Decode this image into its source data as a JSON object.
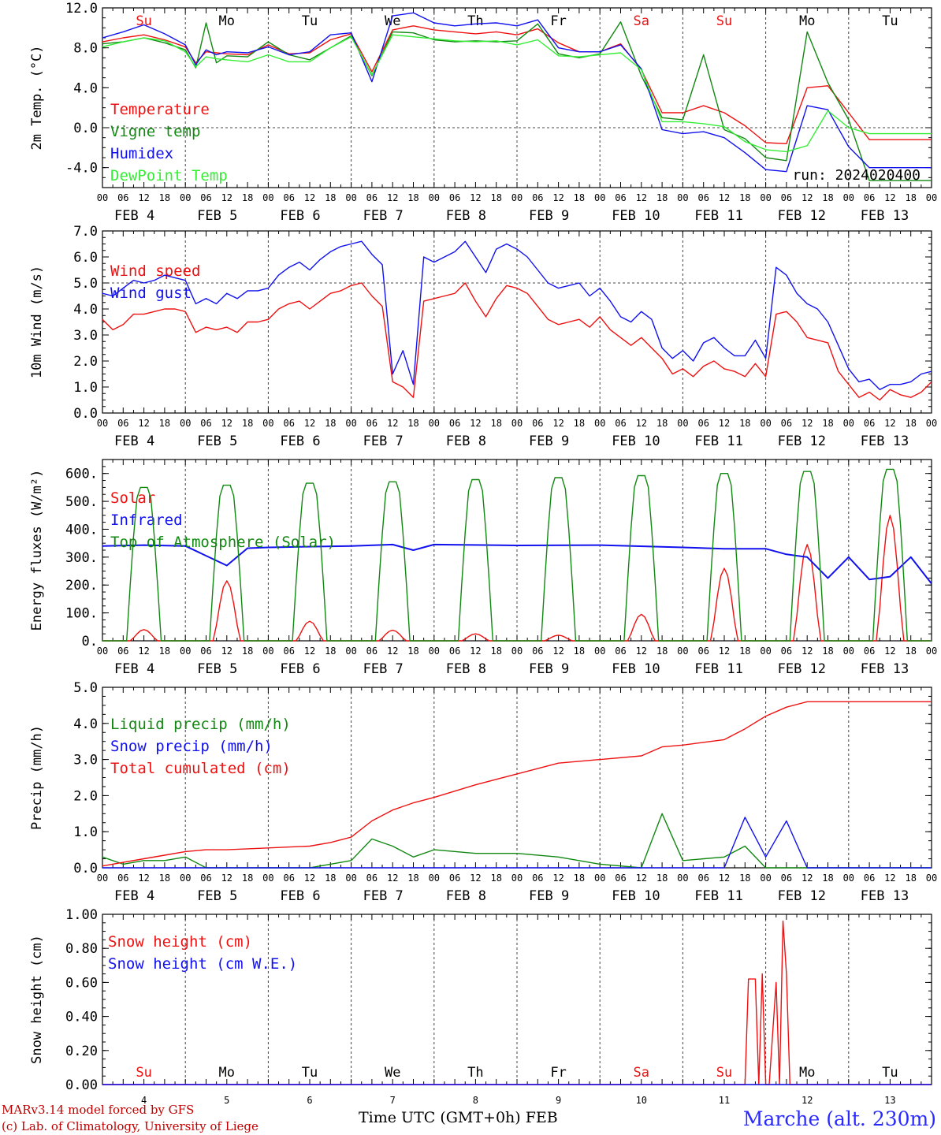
{
  "colors": {
    "red": "#ee1111",
    "green": "#118811",
    "blue": "#1111ee",
    "lightgreen": "#33ee33",
    "weekend": "#ee1111",
    "weekday": "#000000"
  },
  "day_labels": [
    "Su",
    "Mo",
    "Tu",
    "We",
    "Th",
    "Fr",
    "Sa",
    "Su",
    "Mo",
    "Tu"
  ],
  "weekend_flags": [
    true,
    false,
    false,
    false,
    false,
    false,
    true,
    true,
    false,
    false
  ],
  "date_labels": [
    "FEB  4",
    "FEB  5",
    "FEB  6",
    "FEB  7",
    "FEB  8",
    "FEB  9",
    "FEB 10",
    "FEB 11",
    "FEB 12",
    "FEB 13"
  ],
  "day_numbers": [
    "4",
    "5",
    "6",
    "7",
    "8",
    "9",
    "10",
    "11",
    "12",
    "13"
  ],
  "hour_ticks": [
    "00",
    "06",
    "12",
    "18"
  ],
  "final_hour_tick": "00",
  "footer": {
    "credit_line1": "MARv3.14 model forced by GFS",
    "credit_line2": "(c) Lab. of Climatology, University of Liege",
    "time_axis": "Time UTC (GMT+0h) FEB",
    "station": "Marche (alt. 230m)"
  },
  "chart_data": [
    {
      "type": "line",
      "ylabel": "2m Temp. (°C)",
      "ylim": [
        -6,
        12
      ],
      "yticks": [
        "12.0",
        "8.0",
        "4.0",
        "0.0",
        "-4.0"
      ],
      "ytick_values": [
        12,
        8,
        4,
        0,
        -4
      ],
      "ref_line": 0,
      "annotation": "run: 2024020400",
      "x_hours": [
        0,
        6,
        12,
        18,
        24,
        27,
        30,
        33,
        36,
        42,
        48,
        54,
        60,
        66,
        72,
        78,
        84,
        90,
        96,
        102,
        108,
        114,
        120,
        126,
        132,
        138,
        144,
        150,
        156,
        162,
        168,
        174,
        180,
        186,
        192,
        198,
        204,
        210,
        216,
        222,
        228,
        234,
        240
      ],
      "series": [
        {
          "name": "Temperature",
          "color_key": "red",
          "values": [
            8.6,
            9.0,
            9.3,
            8.8,
            8.1,
            6.5,
            7.6,
            7.5,
            7.4,
            7.3,
            8.3,
            7.4,
            7.5,
            8.8,
            9.4,
            5.6,
            9.8,
            10.2,
            9.8,
            9.6,
            9.4,
            9.6,
            9.3,
            9.9,
            8.5,
            7.6,
            7.6,
            8.4,
            5.8,
            1.5,
            1.5,
            2.2,
            1.5,
            0.2,
            -1.5,
            -1.6,
            4.0,
            4.2,
            1.5,
            -1.2,
            -1.2,
            -1.2,
            -1.2
          ]
        },
        {
          "name": "Vigne temp",
          "color_key": "green",
          "values": [
            8.4,
            8.6,
            9.0,
            8.5,
            7.8,
            6.0,
            10.5,
            6.5,
            7.2,
            7.1,
            8.6,
            7.3,
            6.8,
            8.0,
            9.2,
            5.2,
            9.6,
            9.5,
            8.8,
            8.6,
            8.7,
            8.6,
            8.7,
            10.4,
            7.4,
            7.0,
            7.4,
            10.6,
            5.2,
            1.0,
            0.8,
            7.3,
            -0.2,
            -1.1,
            -3.0,
            -3.3,
            9.6,
            4.5,
            0.8,
            -5.3,
            -5.3,
            -5.3,
            -5.3
          ]
        },
        {
          "name": "Humidex",
          "color_key": "blue",
          "values": [
            9.0,
            9.6,
            10.3,
            9.4,
            8.3,
            6.3,
            7.8,
            7.3,
            7.6,
            7.5,
            8.1,
            7.3,
            7.6,
            9.3,
            9.5,
            4.6,
            11.2,
            11.5,
            10.5,
            10.2,
            10.4,
            10.5,
            10.2,
            10.8,
            8.0,
            7.6,
            7.6,
            8.3,
            5.9,
            -0.2,
            -0.6,
            -0.4,
            -1.0,
            -2.5,
            -4.2,
            -4.4,
            2.2,
            1.8,
            -1.9,
            -4.0,
            -4.0,
            -4.0,
            -4.0
          ]
        },
        {
          "name": "DewPoint Temp",
          "color_key": "lightgreen",
          "values": [
            8.1,
            8.6,
            9.0,
            8.7,
            7.6,
            6.1,
            7.1,
            6.9,
            6.8,
            6.6,
            7.3,
            6.6,
            6.6,
            8.0,
            9.1,
            5.3,
            9.3,
            9.1,
            8.9,
            8.7,
            8.6,
            8.7,
            8.3,
            8.8,
            7.2,
            7.1,
            7.3,
            7.5,
            5.8,
            0.6,
            0.6,
            0.4,
            0.1,
            -1.4,
            -2.2,
            -2.4,
            -1.8,
            1.7,
            0.0,
            -0.6,
            -0.6,
            -0.6,
            -0.6
          ]
        }
      ]
    },
    {
      "type": "line",
      "ylabel": "10m Wind (m/s)",
      "ylim": [
        0,
        7
      ],
      "yticks": [
        "7.0",
        "6.0",
        "5.0",
        "4.0",
        "3.0",
        "2.0",
        "1.0",
        "0.0"
      ],
      "ytick_values": [
        7,
        6,
        5,
        4,
        3,
        2,
        1,
        0
      ],
      "ref_line": 5,
      "x_hours": [
        0,
        3,
        6,
        9,
        12,
        15,
        18,
        21,
        24,
        27,
        30,
        33,
        36,
        39,
        42,
        45,
        48,
        51,
        54,
        57,
        60,
        63,
        66,
        69,
        72,
        75,
        78,
        81,
        84,
        87,
        90,
        93,
        96,
        99,
        102,
        105,
        108,
        111,
        114,
        117,
        120,
        123,
        126,
        129,
        132,
        135,
        138,
        141,
        144,
        147,
        150,
        153,
        156,
        159,
        162,
        165,
        168,
        171,
        174,
        177,
        180,
        183,
        186,
        189,
        192,
        195,
        198,
        201,
        204,
        207,
        210,
        213,
        216,
        219,
        222,
        225,
        228,
        231,
        234,
        237,
        240
      ],
      "series": [
        {
          "name": "Wind speed",
          "color_key": "red",
          "values": [
            3.6,
            3.2,
            3.4,
            3.8,
            3.8,
            3.9,
            4.0,
            4.0,
            3.9,
            3.1,
            3.3,
            3.2,
            3.3,
            3.1,
            3.5,
            3.5,
            3.6,
            4.0,
            4.2,
            4.3,
            4.0,
            4.3,
            4.6,
            4.7,
            4.9,
            5.0,
            4.5,
            4.1,
            1.2,
            1.0,
            0.6,
            4.3,
            4.4,
            4.5,
            4.6,
            5.0,
            4.3,
            3.7,
            4.4,
            4.9,
            4.8,
            4.6,
            4.1,
            3.6,
            3.4,
            3.5,
            3.6,
            3.3,
            3.7,
            3.2,
            2.9,
            2.6,
            2.9,
            2.5,
            2.1,
            1.5,
            1.7,
            1.4,
            1.8,
            2.0,
            1.7,
            1.6,
            1.4,
            1.9,
            1.4,
            3.8,
            3.9,
            3.5,
            2.9,
            2.8,
            2.7,
            1.6,
            1.1,
            0.6,
            0.8,
            0.5,
            0.9,
            0.7,
            0.6,
            0.8,
            1.2
          ]
        },
        {
          "name": "Wind gust",
          "color_key": "blue",
          "values": [
            4.6,
            4.5,
            4.8,
            5.1,
            5.0,
            5.1,
            5.3,
            5.2,
            5.1,
            4.2,
            4.4,
            4.2,
            4.6,
            4.4,
            4.7,
            4.7,
            4.8,
            5.3,
            5.6,
            5.8,
            5.5,
            5.9,
            6.2,
            6.4,
            6.5,
            6.6,
            6.1,
            5.7,
            1.5,
            2.4,
            1.1,
            6.0,
            5.8,
            6.0,
            6.2,
            6.6,
            6.0,
            5.4,
            6.3,
            6.5,
            6.3,
            6.0,
            5.5,
            5.0,
            4.8,
            4.9,
            5.0,
            4.5,
            4.8,
            4.3,
            3.7,
            3.5,
            3.9,
            3.6,
            2.5,
            2.1,
            2.4,
            2.0,
            2.7,
            2.9,
            2.5,
            2.2,
            2.2,
            2.8,
            2.1,
            5.6,
            5.3,
            4.6,
            4.2,
            4.0,
            3.5,
            2.6,
            1.7,
            1.2,
            1.3,
            0.9,
            1.1,
            1.1,
            1.2,
            1.5,
            1.6
          ]
        }
      ]
    },
    {
      "type": "line",
      "ylabel": "Energy fluxes (W/m²)",
      "ylim": [
        0,
        650
      ],
      "yticks": [
        "600.",
        "500.",
        "400.",
        "300.",
        "200.",
        "100.",
        "0."
      ],
      "ytick_values": [
        600,
        500,
        400,
        300,
        200,
        100,
        0
      ],
      "series": [
        {
          "name": "Solar",
          "color_key": "red",
          "daily_peaks_w_m2": [
            40,
            215,
            70,
            38,
            25,
            20,
            95,
            260,
            345,
            450
          ],
          "peak_shape": "diurnal-bell"
        },
        {
          "name": "Infrared",
          "color_key": "blue",
          "x_hours": [
            0,
            12,
            24,
            30,
            36,
            42,
            48,
            72,
            84,
            90,
            96,
            120,
            144,
            168,
            180,
            192,
            198,
            204,
            210,
            216,
            222,
            228,
            234,
            240
          ],
          "values": [
            340,
            343,
            340,
            305,
            270,
            332,
            335,
            340,
            345,
            325,
            345,
            342,
            343,
            335,
            330,
            330,
            310,
            300,
            225,
            300,
            220,
            230,
            300,
            205
          ]
        },
        {
          "name": "Top of Atmosphere (Solar)",
          "color_key": "green",
          "daily_peaks_w_m2": [
            550,
            558,
            565,
            570,
            578,
            585,
            592,
            600,
            607,
            615
          ],
          "peak_shape": "diurnal-trapezoid"
        }
      ]
    },
    {
      "type": "line",
      "ylabel": "Precip (mm/h)",
      "ylim": [
        0,
        5
      ],
      "yticks": [
        "5.0",
        "4.0",
        "3.0",
        "2.0",
        "1.0",
        "0.0"
      ],
      "ytick_values": [
        5,
        4,
        3,
        2,
        1,
        0
      ],
      "x_hours": [
        0,
        6,
        12,
        18,
        24,
        30,
        36,
        48,
        60,
        66,
        72,
        78,
        84,
        90,
        96,
        108,
        120,
        132,
        144,
        156,
        162,
        168,
        180,
        186,
        192,
        198,
        204,
        210,
        216,
        240
      ],
      "series": [
        {
          "name": "Liquid precip (mm/h)",
          "color_key": "green",
          "values": [
            0.3,
            0.1,
            0.2,
            0.2,
            0.3,
            0.0,
            0.0,
            0.0,
            0.0,
            0.1,
            0.2,
            0.8,
            0.6,
            0.3,
            0.5,
            0.4,
            0.4,
            0.3,
            0.1,
            0.0,
            1.5,
            0.2,
            0.3,
            0.6,
            0.0,
            0.0,
            0.0,
            0.0,
            0.0,
            0.0
          ]
        },
        {
          "name": "Snow precip (mm/h)",
          "color_key": "blue",
          "values": [
            0.0,
            0.0,
            0.0,
            0.0,
            0.0,
            0.0,
            0.0,
            0.0,
            0.0,
            0.0,
            0.0,
            0.0,
            0.0,
            0.0,
            0.0,
            0.0,
            0.0,
            0.0,
            0.0,
            0.0,
            0.0,
            0.0,
            0.0,
            1.4,
            0.3,
            1.3,
            0.0,
            0.0,
            0.0,
            0.0
          ]
        },
        {
          "name": "Total cumulated (cm)",
          "color_key": "red",
          "values": [
            0.05,
            0.15,
            0.25,
            0.35,
            0.45,
            0.5,
            0.5,
            0.55,
            0.6,
            0.7,
            0.85,
            1.3,
            1.6,
            1.8,
            1.95,
            2.3,
            2.6,
            2.9,
            3.0,
            3.1,
            3.35,
            3.4,
            3.55,
            3.85,
            4.2,
            4.45,
            4.6,
            4.6,
            4.6,
            4.6
          ]
        }
      ]
    },
    {
      "type": "line",
      "ylabel": "Snow height (cm)",
      "ylim": [
        0,
        1
      ],
      "yticks": [
        "1.00",
        "0.80",
        "0.60",
        "0.40",
        "0.20",
        "0.00"
      ],
      "ytick_values": [
        1,
        0.8,
        0.6,
        0.4,
        0.2,
        0
      ],
      "x_hours": [
        0,
        186,
        187,
        189,
        190,
        191,
        192,
        193,
        195,
        196,
        197,
        198,
        199,
        201,
        202,
        203,
        240
      ],
      "series": [
        {
          "name": "Snow height (cm)",
          "color_key": "red",
          "values": [
            0,
            0,
            0.62,
            0.62,
            0,
            0.65,
            0,
            0,
            0.6,
            0,
            0.96,
            0.65,
            0,
            0,
            0,
            0,
            0
          ]
        },
        {
          "name": "Snow height (cm W.E.)",
          "color_key": "blue",
          "values": [
            0,
            0,
            0,
            0,
            0,
            0,
            0,
            0,
            0,
            0,
            0,
            0,
            0,
            0,
            0,
            0,
            0
          ]
        }
      ]
    }
  ]
}
